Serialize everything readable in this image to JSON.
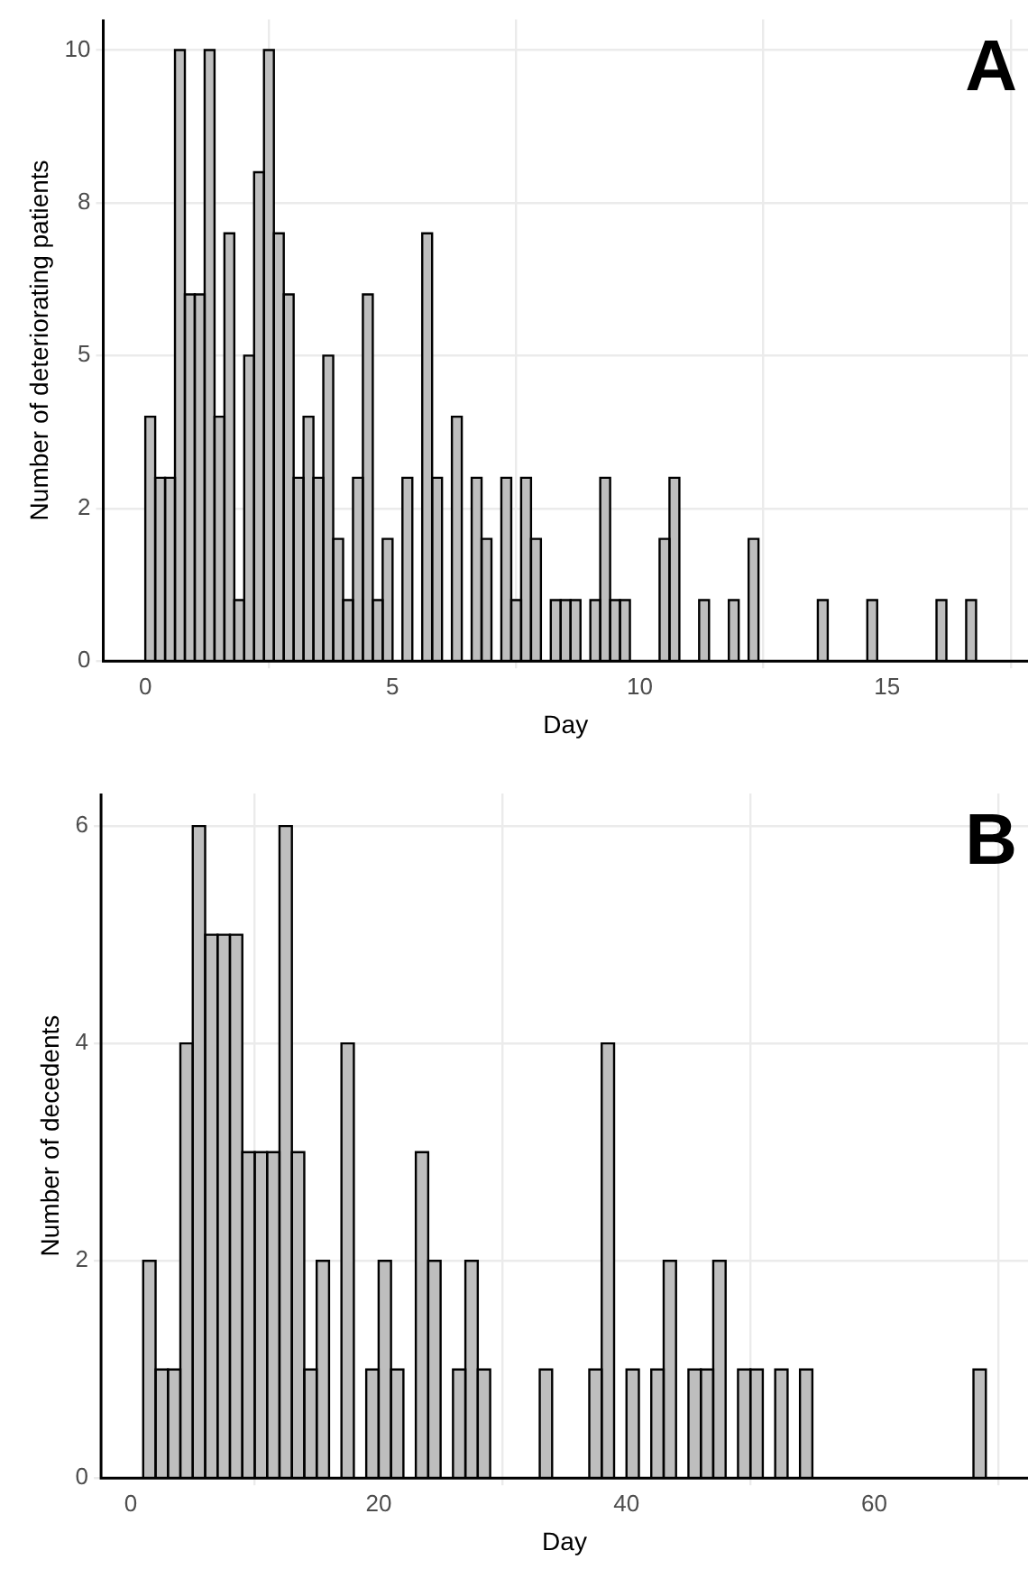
{
  "chart_data": [
    {
      "type": "histogram",
      "xlabel": "Day",
      "ylabel": "Number of deteriorating patients",
      "color": "#bebebe",
      "bins": [
        0,
        0.2,
        0.4,
        0.6,
        0.8,
        1,
        1.2,
        1.4,
        1.6,
        1.8,
        2,
        2.2,
        2.4,
        2.6,
        2.8,
        3,
        3.2,
        3.4,
        3.6,
        3.8,
        4,
        4.2,
        4.4,
        4.6,
        4.8,
        5,
        5.2,
        5.4,
        5.6,
        5.8,
        6,
        6.2,
        6.4,
        6.6,
        6.8,
        7,
        7.2,
        7.4,
        7.6,
        7.8,
        8,
        8.2,
        8.4,
        8.6,
        8.8,
        9,
        9.2,
        9.4,
        9.6,
        9.8,
        10,
        10.2,
        10.4,
        10.6,
        10.8,
        11,
        11.2,
        11.4,
        11.6,
        11.8,
        12,
        12.2,
        12.4,
        12.6,
        12.8,
        13,
        13.2,
        13.4,
        13.6,
        13.8,
        14,
        14.2,
        14.4,
        14.6,
        14.8,
        15,
        15.2,
        15.4,
        15.6,
        15.8,
        16,
        16.2,
        16.4,
        16.6,
        16.8,
        17
      ],
      "values": [
        4,
        3,
        3,
        10,
        6,
        6,
        10,
        4,
        7,
        1,
        5,
        8,
        10,
        7,
        6,
        3,
        4,
        3,
        5,
        2,
        1,
        3,
        6,
        1,
        2,
        0,
        3,
        0,
        7,
        3,
        0,
        4,
        0,
        3,
        2,
        0,
        3,
        1,
        3,
        2,
        0,
        1,
        1,
        1,
        0,
        1,
        3,
        1,
        1,
        0,
        0,
        0,
        2,
        3,
        0,
        0,
        1,
        0,
        0,
        1,
        0,
        2,
        0,
        0,
        0,
        0,
        0,
        0,
        1,
        0,
        0,
        0,
        0,
        1,
        0,
        0,
        0,
        0,
        0,
        0,
        1,
        0,
        0,
        1,
        0
      ],
      "xlim": [
        -0.85,
        17.85
      ],
      "xticks": [
        0,
        5,
        10,
        15
      ],
      "ylim": [
        0,
        10.5
      ],
      "yticks": [
        0,
        {
          "value": 2.5,
          "label": "2"
        },
        5,
        {
          "value": 7.5,
          "label": "8"
        },
        10
      ],
      "grid": true,
      "annotations": [
        "A"
      ]
    },
    {
      "type": "histogram",
      "xlabel": "Day",
      "ylabel": "Number of decedents",
      "color": "#bebebe",
      "bins": [
        1,
        2,
        3,
        4,
        5,
        6,
        7,
        8,
        9,
        10,
        11,
        12,
        13,
        14,
        15,
        16,
        17,
        18,
        19,
        20,
        21,
        22,
        23,
        24,
        25,
        26,
        27,
        28,
        29,
        30,
        31,
        32,
        33,
        34,
        35,
        36,
        37,
        38,
        39,
        40,
        41,
        42,
        43,
        44,
        45,
        46,
        47,
        48,
        49,
        50,
        51,
        52,
        53,
        54,
        55,
        56,
        57,
        58,
        59,
        60,
        61,
        62,
        63,
        64,
        65,
        66,
        67,
        68,
        69
      ],
      "values": [
        2,
        1,
        1,
        4,
        6,
        5,
        5,
        5,
        3,
        3,
        3,
        6,
        3,
        1,
        2,
        0,
        4,
        0,
        1,
        2,
        1,
        0,
        3,
        2,
        0,
        1,
        2,
        1,
        0,
        0,
        0,
        0,
        1,
        0,
        0,
        0,
        1,
        4,
        0,
        1,
        0,
        1,
        2,
        0,
        1,
        1,
        2,
        0,
        1,
        1,
        0,
        1,
        0,
        1,
        0,
        0,
        0,
        0,
        0,
        0,
        0,
        0,
        0,
        0,
        0,
        0,
        0,
        1
      ],
      "xlim": [
        -2.4,
        72.4
      ],
      "xticks": [
        0,
        20,
        40,
        60
      ],
      "ylim": [
        0,
        6.3
      ],
      "yticks": [
        0,
        2,
        4,
        6
      ],
      "grid": true,
      "annotations": [
        "B"
      ]
    }
  ]
}
